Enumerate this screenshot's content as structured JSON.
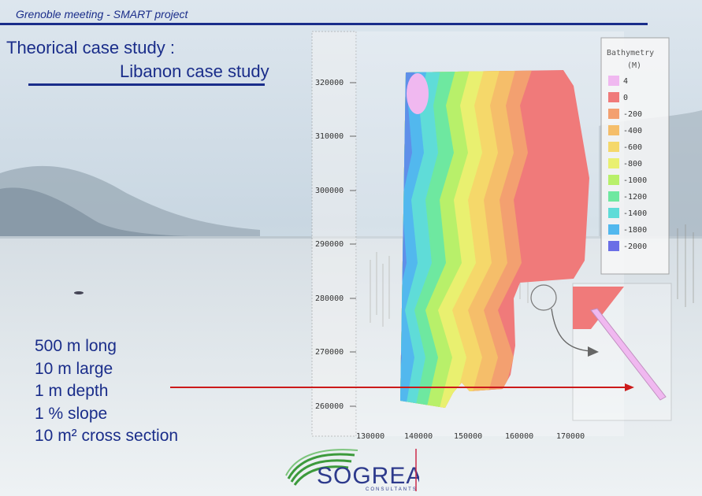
{
  "header": {
    "text": "Grenoble meeting  - SMART project"
  },
  "title": {
    "line1": "Theorical case study :",
    "line2": "Libanon case study"
  },
  "specs": [
    "500 m  long",
    "10 m large",
    "1 m depth",
    "1 % slope",
    "10 m² cross section"
  ],
  "map": {
    "y_ticks": [
      "320000",
      "310000",
      "300000",
      "290000",
      "280000",
      "270000",
      "260000"
    ],
    "x_ticks": [
      "130000",
      "140000",
      "150000",
      "160000",
      "170000"
    ]
  },
  "legend": {
    "title": "Bathymetry",
    "unit": "(M)",
    "items": [
      {
        "label": "4",
        "color": "#f0b8f0"
      },
      {
        "label": "0",
        "color": "#f07a7a"
      },
      {
        "label": "-200",
        "color": "#f3a070"
      },
      {
        "label": "-400",
        "color": "#f5be6a"
      },
      {
        "label": "-600",
        "color": "#f5d86a"
      },
      {
        "label": "-800",
        "color": "#e9f070"
      },
      {
        "label": "-1000",
        "color": "#b8f06a"
      },
      {
        "label": "-1200",
        "color": "#6ee8a0"
      },
      {
        "label": "-1400",
        "color": "#5fdcd8"
      },
      {
        "label": "-1800",
        "color": "#52b8ee"
      },
      {
        "label": "-2000",
        "color": "#6a6ee6"
      }
    ]
  },
  "logo": {
    "name": "SOGREAH",
    "sub": "CONSULTANTS"
  }
}
